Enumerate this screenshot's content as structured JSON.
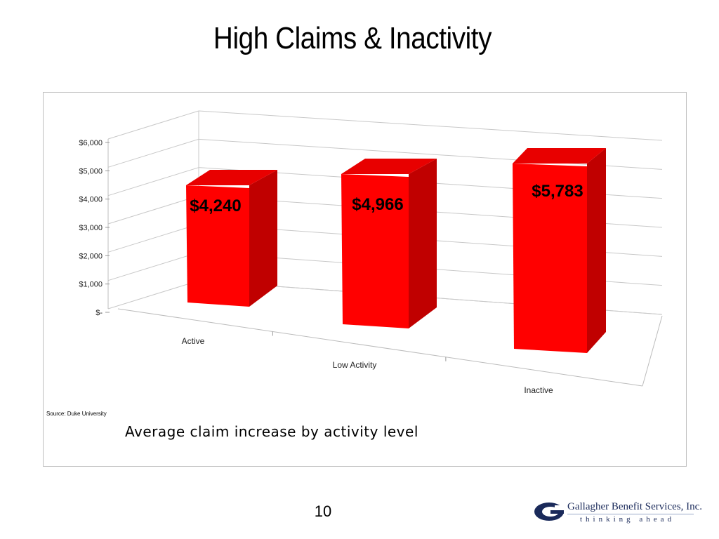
{
  "slide": {
    "title": "High Claims & Inactivity",
    "source": "Source: Duke University",
    "caption": "Average claim increase by activity level",
    "page_number": "10"
  },
  "brand": {
    "name": "Gallagher Benefit Services, Inc.",
    "tagline": "thinking ahead",
    "colors": {
      "primary": "#1a2a5a",
      "accent": "#9aaac8"
    }
  },
  "chart_data": {
    "type": "bar",
    "categories": [
      "Active",
      "Low Activity",
      "Inactive"
    ],
    "values": [
      4240,
      4966,
      5783
    ],
    "data_labels": [
      "$4,240",
      "$4,966",
      "$5,783"
    ],
    "ytick_labels": [
      "$-",
      "$1,000",
      "$2,000",
      "$3,000",
      "$4,000",
      "$5,000",
      "$6,000"
    ],
    "ytick_values": [
      0,
      1000,
      2000,
      3000,
      4000,
      5000,
      6000
    ],
    "ylim": [
      0,
      6000
    ],
    "grid": true,
    "legend": "none",
    "bar_color": "#ff0000"
  }
}
